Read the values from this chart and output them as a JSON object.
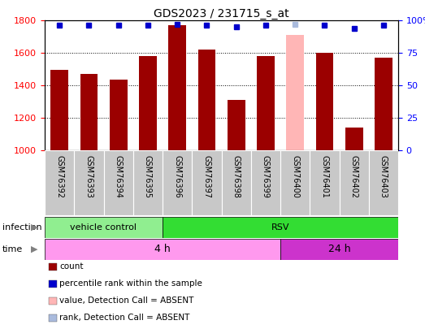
{
  "title": "GDS2023 / 231715_s_at",
  "samples": [
    "GSM76392",
    "GSM76393",
    "GSM76394",
    "GSM76395",
    "GSM76396",
    "GSM76397",
    "GSM76398",
    "GSM76399",
    "GSM76400",
    "GSM76401",
    "GSM76402",
    "GSM76403"
  ],
  "counts": [
    1495,
    1468,
    1435,
    1578,
    1770,
    1618,
    1312,
    1582,
    1710,
    1598,
    1138,
    1572
  ],
  "percentile_ranks": [
    96,
    96,
    96,
    96,
    97,
    96,
    95,
    96,
    97,
    96,
    94,
    96
  ],
  "absent_mask": [
    false,
    false,
    false,
    false,
    false,
    false,
    false,
    false,
    true,
    false,
    false,
    false
  ],
  "ymin": 1000,
  "ymax": 1800,
  "yticks": [
    1000,
    1200,
    1400,
    1600,
    1800
  ],
  "right_yticks": [
    0,
    25,
    50,
    75,
    100
  ],
  "bar_color": "#9B0000",
  "absent_bar_color": "#FFB6B6",
  "dot_color": "#0000CC",
  "absent_dot_color": "#AABBDD",
  "infection_groups": [
    {
      "label": "vehicle control",
      "start": 0,
      "end": 4,
      "color": "#90EE90"
    },
    {
      "label": "RSV",
      "start": 4,
      "end": 12,
      "color": "#33DD33"
    }
  ],
  "time_groups": [
    {
      "label": "4 h",
      "start": 0,
      "end": 8,
      "color": "#FF99EE"
    },
    {
      "label": "24 h",
      "start": 8,
      "end": 12,
      "color": "#CC33CC"
    }
  ],
  "xtick_bg": "#C8C8C8",
  "legend_items": [
    {
      "color": "#9B0000",
      "label": "count"
    },
    {
      "color": "#0000CC",
      "label": "percentile rank within the sample"
    },
    {
      "color": "#FFB6B6",
      "label": "value, Detection Call = ABSENT"
    },
    {
      "color": "#AABBDD",
      "label": "rank, Detection Call = ABSENT"
    }
  ]
}
